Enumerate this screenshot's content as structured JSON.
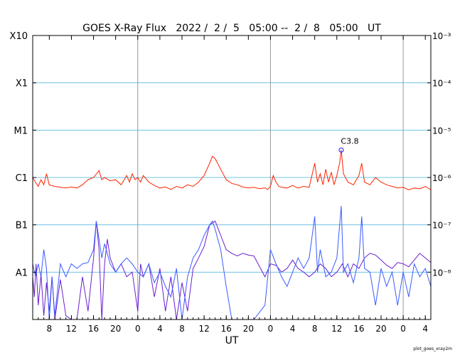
{
  "chart_data": {
    "type": "line",
    "title": "GOES X-Ray Flux   2022 /  2 /  5   05:00 --  2 /  8   05:00   UT",
    "xlabel": "UT",
    "ylabel": "",
    "footer": "plot_goes_xray2m",
    "x_range_hours": [
      0,
      72
    ],
    "x_tick_labels": [
      "8",
      "12",
      "16",
      "20",
      "0",
      "4",
      "8",
      "12",
      "16",
      "20",
      "0",
      "4",
      "8",
      "12",
      "16",
      "20",
      "0",
      "4"
    ],
    "x_tick_hours_since_start": [
      3,
      7,
      11,
      15,
      19,
      23,
      27,
      31,
      35,
      39,
      43,
      47,
      51,
      55,
      59,
      63,
      67,
      71
    ],
    "day_boundary_hours_since_start": [
      19,
      43,
      67
    ],
    "y_scale": "log",
    "ylim": [
      1e-09,
      0.001
    ],
    "y_left_labels": [
      "X10",
      "X1",
      "M1",
      "C1",
      "B1",
      "A1"
    ],
    "y_left_values": [
      0.001,
      0.0001,
      1e-05,
      1e-06,
      1e-07,
      1e-08
    ],
    "y_right_labels": [
      "10⁻³",
      "10⁻⁴",
      "10⁻⁵",
      "10⁻⁶",
      "10⁻⁷",
      "10⁻⁸"
    ],
    "annotation": {
      "label": "C3.8",
      "x_hour": 55.8,
      "y": 3.8e-06
    },
    "series": [
      {
        "name": "",
        "color": "#ff2200",
        "points": [
          [
            0,
            1e-06
          ],
          [
            0.5,
            8e-07
          ],
          [
            1,
            6.5e-07
          ],
          [
            1.5,
            9e-07
          ],
          [
            2,
            7e-07
          ],
          [
            2.5,
            1.2e-06
          ],
          [
            3,
            7e-07
          ],
          [
            4,
            6.5e-07
          ],
          [
            5,
            6.2e-07
          ],
          [
            6,
            6e-07
          ],
          [
            7,
            6.3e-07
          ],
          [
            8,
            6e-07
          ],
          [
            9,
            7e-07
          ],
          [
            10,
            9e-07
          ],
          [
            11,
            1e-06
          ],
          [
            12,
            1.4e-06
          ],
          [
            12.5,
            9e-07
          ],
          [
            13,
            1e-06
          ],
          [
            14,
            8.5e-07
          ],
          [
            15,
            9e-07
          ],
          [
            16,
            7e-07
          ],
          [
            17,
            1.1e-06
          ],
          [
            17.5,
            8e-07
          ],
          [
            18,
            1.2e-06
          ],
          [
            18.5,
            9e-07
          ],
          [
            19,
            1e-06
          ],
          [
            19.5,
            8e-07
          ],
          [
            20,
            1.1e-06
          ],
          [
            21,
            8e-07
          ],
          [
            22,
            6.8e-07
          ],
          [
            23,
            6e-07
          ],
          [
            24,
            6.3e-07
          ],
          [
            25,
            5.6e-07
          ],
          [
            26,
            6.5e-07
          ],
          [
            27,
            6e-07
          ],
          [
            28,
            7e-07
          ],
          [
            29,
            6.5e-07
          ],
          [
            30,
            8e-07
          ],
          [
            31,
            1.1e-06
          ],
          [
            32,
            2e-06
          ],
          [
            32.5,
            2.8e-06
          ],
          [
            33,
            2.5e-06
          ],
          [
            34,
            1.5e-06
          ],
          [
            35,
            9e-07
          ],
          [
            36,
            7.5e-07
          ],
          [
            37,
            7e-07
          ],
          [
            38,
            6.3e-07
          ],
          [
            39,
            6e-07
          ],
          [
            40,
            6.2e-07
          ],
          [
            41,
            5.8e-07
          ],
          [
            42,
            6e-07
          ],
          [
            42.5,
            5.6e-07
          ],
          [
            43,
            6.5e-07
          ],
          [
            43.5,
            1.1e-06
          ],
          [
            44,
            8e-07
          ],
          [
            44.5,
            6.5e-07
          ],
          [
            45,
            6.2e-07
          ],
          [
            46,
            6e-07
          ],
          [
            47,
            6.8e-07
          ],
          [
            48,
            6e-07
          ],
          [
            49,
            6.5e-07
          ],
          [
            50,
            6.2e-07
          ],
          [
            51,
            2e-06
          ],
          [
            51.5,
            8e-07
          ],
          [
            52,
            1.2e-06
          ],
          [
            52.5,
            7e-07
          ],
          [
            53,
            1.5e-06
          ],
          [
            53.5,
            8e-07
          ],
          [
            54,
            1.3e-06
          ],
          [
            54.5,
            7e-07
          ],
          [
            55,
            1.1e-06
          ],
          [
            55.5,
            2e-06
          ],
          [
            55.8,
            3.8e-06
          ],
          [
            56.2,
            1.2e-06
          ],
          [
            57,
            8e-07
          ],
          [
            58,
            7e-07
          ],
          [
            59,
            1.1e-06
          ],
          [
            59.5,
            2e-06
          ],
          [
            60,
            8e-07
          ],
          [
            61,
            7e-07
          ],
          [
            62,
            1e-06
          ],
          [
            63,
            8e-07
          ],
          [
            64,
            7e-07
          ],
          [
            65,
            6.5e-07
          ],
          [
            66,
            6e-07
          ],
          [
            67,
            6.2e-07
          ],
          [
            68,
            5.5e-07
          ],
          [
            69,
            6e-07
          ],
          [
            70,
            5.8e-07
          ],
          [
            71,
            6.5e-07
          ],
          [
            72,
            5.5e-07
          ]
        ]
      },
      {
        "name": "",
        "color": "#6a1fd0",
        "points": [
          [
            0,
            8e-09
          ],
          [
            0.3,
            3e-09
          ],
          [
            0.6,
            1.5e-08
          ],
          [
            1,
            2e-09
          ],
          [
            1.5,
            9e-09
          ],
          [
            2,
            1.2e-09
          ],
          [
            2.5,
            6e-09
          ],
          [
            3,
            1.5e-09
          ],
          [
            3.5,
            8e-09
          ],
          [
            4,
            1e-09
          ],
          [
            5,
            7e-09
          ],
          [
            6,
            1.2e-09
          ],
          [
            7,
            1e-09
          ],
          [
            8,
            1e-09
          ],
          [
            9,
            8e-09
          ],
          [
            10,
            1.5e-09
          ],
          [
            11,
            2e-08
          ],
          [
            11.5,
            1.2e-07
          ],
          [
            12,
            3e-08
          ],
          [
            12.5,
            1e-09
          ],
          [
            13,
            1.5e-08
          ],
          [
            13.5,
            5e-08
          ],
          [
            14,
            2e-08
          ],
          [
            15,
            1e-08
          ],
          [
            16,
            1.5e-08
          ],
          [
            17,
            8e-09
          ],
          [
            18,
            1e-08
          ],
          [
            19,
            1.5e-09
          ],
          [
            19.5,
            1.5e-08
          ],
          [
            20,
            8e-09
          ],
          [
            21,
            1.5e-08
          ],
          [
            22,
            3e-09
          ],
          [
            23,
            1.2e-08
          ],
          [
            24,
            1.5e-09
          ],
          [
            25,
            8e-09
          ],
          [
            26,
            1e-09
          ],
          [
            27,
            6e-09
          ],
          [
            28,
            1.5e-09
          ],
          [
            29,
            1.2e-08
          ],
          [
            30,
            2e-08
          ],
          [
            31,
            3.5e-08
          ],
          [
            32,
            1e-07
          ],
          [
            33,
            1.2e-07
          ],
          [
            34,
            6e-08
          ],
          [
            35,
            3e-08
          ],
          [
            36,
            2.5e-08
          ],
          [
            37,
            2.2e-08
          ],
          [
            38,
            2.5e-08
          ],
          [
            39,
            2.3e-08
          ],
          [
            40,
            2.2e-08
          ],
          [
            42,
            8e-09
          ],
          [
            43,
            1.5e-08
          ],
          [
            44,
            1.4e-08
          ],
          [
            45,
            1e-08
          ],
          [
            46,
            1.2e-08
          ],
          [
            47,
            1.8e-08
          ],
          [
            48,
            1.2e-08
          ],
          [
            49,
            1e-08
          ],
          [
            50,
            8e-09
          ],
          [
            51,
            1e-08
          ],
          [
            52,
            1.5e-08
          ],
          [
            53,
            1.2e-08
          ],
          [
            54,
            8e-09
          ],
          [
            55,
            1e-08
          ],
          [
            56,
            1.5e-08
          ],
          [
            57,
            8e-09
          ],
          [
            58,
            1.5e-08
          ],
          [
            59,
            1.2e-08
          ],
          [
            60,
            2e-08
          ],
          [
            61,
            2.5e-08
          ],
          [
            62,
            2.3e-08
          ],
          [
            63,
            1.8e-08
          ],
          [
            64,
            1.4e-08
          ],
          [
            65,
            1.2e-08
          ],
          [
            66,
            1.6e-08
          ],
          [
            67,
            1.5e-08
          ],
          [
            68,
            1.3e-08
          ],
          [
            69,
            1.8e-08
          ],
          [
            70,
            2.5e-08
          ],
          [
            71,
            2e-08
          ],
          [
            72,
            1.6e-08
          ]
        ]
      },
      {
        "name": "",
        "color": "#3a5bff",
        "points": [
          [
            0,
            1.5e-08
          ],
          [
            0.5,
            8e-09
          ],
          [
            1,
            1.5e-08
          ],
          [
            1.5,
            8e-09
          ],
          [
            2,
            3e-08
          ],
          [
            2.5,
            1.2e-08
          ],
          [
            3,
            1e-09
          ],
          [
            3.5,
            8e-09
          ],
          [
            4,
            1.2e-09
          ],
          [
            5,
            1.5e-08
          ],
          [
            6,
            8e-09
          ],
          [
            7,
            1.5e-08
          ],
          [
            8,
            1.2e-08
          ],
          [
            9,
            1.5e-08
          ],
          [
            10,
            1.6e-08
          ],
          [
            11,
            3e-08
          ],
          [
            11.5,
            1.2e-07
          ],
          [
            12,
            5e-08
          ],
          [
            12.5,
            2e-08
          ],
          [
            13,
            4e-08
          ],
          [
            14,
            1.5e-08
          ],
          [
            15,
            1e-08
          ],
          [
            16,
            1.5e-08
          ],
          [
            17,
            2e-08
          ],
          [
            18,
            1.5e-08
          ],
          [
            19,
            1e-08
          ],
          [
            20,
            8e-09
          ],
          [
            21,
            1.5e-08
          ],
          [
            22,
            6e-09
          ],
          [
            23,
            1e-08
          ],
          [
            24,
            5e-09
          ],
          [
            25,
            3e-09
          ],
          [
            26,
            1.2e-08
          ],
          [
            27,
            1e-09
          ],
          [
            28,
            8e-09
          ],
          [
            29,
            2e-08
          ],
          [
            30,
            3e-08
          ],
          [
            31,
            6e-08
          ],
          [
            32,
            1e-07
          ],
          [
            32.5,
            1.2e-07
          ],
          [
            33,
            8e-08
          ],
          [
            34,
            3e-08
          ],
          [
            35,
            5e-09
          ],
          [
            36,
            1e-09
          ],
          [
            37,
            1e-09
          ],
          [
            38,
            1e-09
          ],
          [
            40,
            1e-09
          ],
          [
            42,
            2e-09
          ],
          [
            43,
            3e-08
          ],
          [
            44,
            1.5e-08
          ],
          [
            45,
            8e-09
          ],
          [
            46,
            5e-09
          ],
          [
            47,
            1e-08
          ],
          [
            48,
            2e-08
          ],
          [
            49,
            1.2e-08
          ],
          [
            50,
            2e-08
          ],
          [
            51,
            1.5e-07
          ],
          [
            51.5,
            1e-08
          ],
          [
            52,
            3e-08
          ],
          [
            53,
            8e-09
          ],
          [
            54,
            1e-08
          ],
          [
            55,
            2e-08
          ],
          [
            55.8,
            2.5e-07
          ],
          [
            56.2,
            1e-08
          ],
          [
            57,
            1.5e-08
          ],
          [
            58,
            6e-09
          ],
          [
            59,
            2e-08
          ],
          [
            59.5,
            1.5e-07
          ],
          [
            60,
            1.2e-08
          ],
          [
            61,
            1e-08
          ],
          [
            62,
            2e-09
          ],
          [
            63,
            1.2e-08
          ],
          [
            64,
            5e-09
          ],
          [
            65,
            1e-08
          ],
          [
            66,
            2e-09
          ],
          [
            67,
            1e-08
          ],
          [
            68,
            3e-09
          ],
          [
            69,
            1.5e-08
          ],
          [
            70,
            8e-09
          ],
          [
            71,
            1.2e-08
          ],
          [
            72,
            5e-09
          ]
        ]
      }
    ]
  }
}
